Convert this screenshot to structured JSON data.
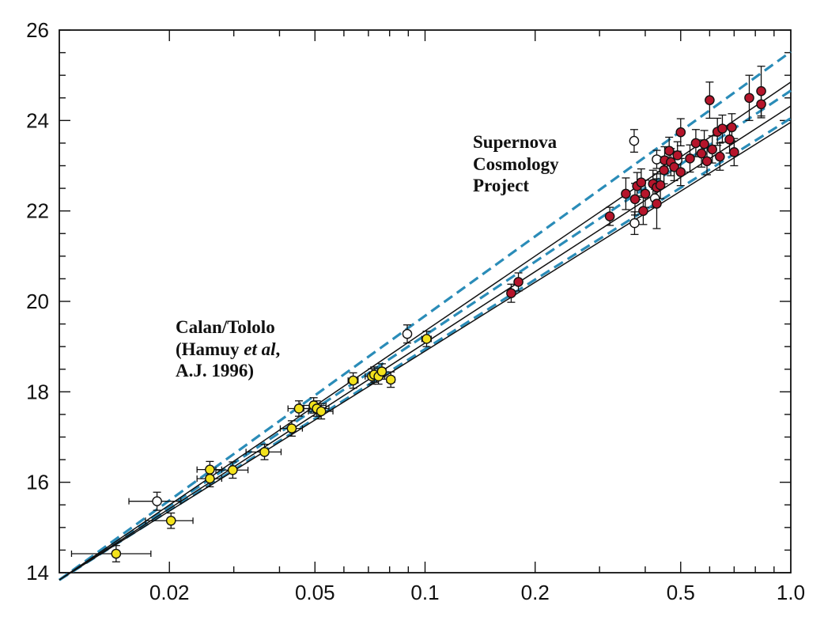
{
  "chart_data": {
    "type": "scatter",
    "title": "",
    "xlabel": "",
    "ylabel": "",
    "xscale": "log",
    "xlim": [
      0.01,
      1.0
    ],
    "ylim": [
      14,
      26
    ],
    "x_tick_labels": [
      "0.02",
      "0.05",
      "0.1",
      "0.2",
      "0.5",
      "1.0"
    ],
    "y_tick_labels": [
      "14",
      "16",
      "18",
      "20",
      "22",
      "24",
      "26"
    ],
    "annotations": {
      "supernova": [
        "Supernova",
        "Cosmology",
        "Project"
      ],
      "calan": {
        "line1": "Calan/Tololo",
        "line2_prefix": "(Hamuy ",
        "line2_italic": "et al",
        "line2_suffix": ",",
        "line3": "A.J. 1996)"
      }
    },
    "colors": {
      "calan_tololo": "#f3e21c",
      "supernova": "#b5152b",
      "open": "#ffffff",
      "dashed_models": "#2a8cb8",
      "solid_models": "#111111"
    },
    "series": [
      {
        "group": "calan_tololo",
        "points": [
          {
            "x": 0.0143,
            "y": 14.42,
            "xerr": 0.0035,
            "yerr": 0.18
          },
          {
            "x": 0.0202,
            "y": 15.15,
            "xerr": 0.003,
            "yerr": 0.17
          },
          {
            "x": 0.0258,
            "y": 16.28,
            "xerr": 0.002,
            "yerr": 0.18
          },
          {
            "x": 0.0258,
            "y": 16.08,
            "xerr": 0.002,
            "yerr": 0.18
          },
          {
            "x": 0.0298,
            "y": 16.27,
            "xerr": 0.003,
            "yerr": 0.18
          },
          {
            "x": 0.0364,
            "y": 16.67,
            "xerr": 0.004,
            "yerr": 0.17
          },
          {
            "x": 0.0432,
            "y": 17.19,
            "xerr": 0.003,
            "yerr": 0.17
          },
          {
            "x": 0.0452,
            "y": 17.63,
            "xerr": 0.003,
            "yerr": 0.17
          },
          {
            "x": 0.0496,
            "y": 17.7,
            "xerr": 0.004,
            "yerr": 0.17
          },
          {
            "x": 0.0506,
            "y": 17.63,
            "xerr": 0.004,
            "yerr": 0.17
          },
          {
            "x": 0.052,
            "y": 17.57,
            "xerr": 0.004,
            "yerr": 0.17
          },
          {
            "x": 0.0636,
            "y": 18.25,
            "xerr": 0.002,
            "yerr": 0.17
          },
          {
            "x": 0.0716,
            "y": 18.34,
            "xerr": 0.003,
            "yerr": 0.17
          },
          {
            "x": 0.0726,
            "y": 18.38,
            "xerr": 0.002,
            "yerr": 0.17
          },
          {
            "x": 0.0746,
            "y": 18.34,
            "xerr": 0.003,
            "yerr": 0.17
          },
          {
            "x": 0.0762,
            "y": 18.45,
            "xerr": 0.002,
            "yerr": 0.17
          },
          {
            "x": 0.0806,
            "y": 18.27,
            "xerr": 0.002,
            "yerr": 0.17
          },
          {
            "x": 0.101,
            "y": 19.17,
            "xerr": 0.003,
            "yerr": 0.17
          }
        ]
      },
      {
        "group": "open",
        "points": [
          {
            "x": 0.0185,
            "y": 15.58,
            "xerr": 0.003,
            "yerr": 0.2
          },
          {
            "x": 0.0894,
            "y": 19.28,
            "xerr": 0.002,
            "yerr": 0.2
          },
          {
            "x": 0.373,
            "y": 23.55,
            "xerr": 0.006,
            "yerr": 0.25
          },
          {
            "x": 0.374,
            "y": 21.73,
            "xerr": 0.006,
            "yerr": 0.25
          },
          {
            "x": 0.43,
            "y": 23.14,
            "xerr": 0.006,
            "yerr": 0.2
          },
          {
            "x": 0.49,
            "y": 23.12,
            "xerr": 0.006,
            "yerr": 0.2
          },
          {
            "x": 0.425,
            "y": 22.28,
            "xerr": 0.006,
            "yerr": 0.2
          }
        ]
      },
      {
        "group": "supernova",
        "points": [
          {
            "x": 0.172,
            "y": 20.18,
            "yerr": 0.2
          },
          {
            "x": 0.18,
            "y": 20.43,
            "yerr": 0.2
          },
          {
            "x": 0.32,
            "y": 21.88,
            "yerr": 0.2
          },
          {
            "x": 0.354,
            "y": 22.38,
            "yerr": 0.35
          },
          {
            "x": 0.375,
            "y": 22.26,
            "yerr": 0.35
          },
          {
            "x": 0.38,
            "y": 22.55,
            "yerr": 0.3
          },
          {
            "x": 0.39,
            "y": 22.63,
            "yerr": 0.3
          },
          {
            "x": 0.395,
            "y": 22.0,
            "yerr": 0.3
          },
          {
            "x": 0.4,
            "y": 22.38,
            "yerr": 0.3
          },
          {
            "x": 0.42,
            "y": 22.6,
            "yerr": 0.3
          },
          {
            "x": 0.43,
            "y": 22.16,
            "yerr": 0.55
          },
          {
            "x": 0.43,
            "y": 22.52,
            "yerr": 0.3
          },
          {
            "x": 0.44,
            "y": 22.57,
            "yerr": 0.3
          },
          {
            "x": 0.45,
            "y": 22.9,
            "yerr": 0.3
          },
          {
            "x": 0.452,
            "y": 23.12,
            "yerr": 0.3
          },
          {
            "x": 0.465,
            "y": 23.33,
            "yerr": 0.3
          },
          {
            "x": 0.47,
            "y": 23.08,
            "yerr": 0.3
          },
          {
            "x": 0.48,
            "y": 22.97,
            "yerr": 0.3
          },
          {
            "x": 0.49,
            "y": 23.23,
            "yerr": 0.3
          },
          {
            "x": 0.5,
            "y": 22.86,
            "yerr": 0.3
          },
          {
            "x": 0.5,
            "y": 23.74,
            "yerr": 0.3
          },
          {
            "x": 0.53,
            "y": 23.16,
            "yerr": 0.3
          },
          {
            "x": 0.55,
            "y": 23.5,
            "yerr": 0.3
          },
          {
            "x": 0.57,
            "y": 23.27,
            "yerr": 0.3
          },
          {
            "x": 0.58,
            "y": 23.48,
            "yerr": 0.3
          },
          {
            "x": 0.59,
            "y": 23.1,
            "yerr": 0.3
          },
          {
            "x": 0.6,
            "y": 24.45,
            "yerr": 0.4
          },
          {
            "x": 0.61,
            "y": 23.36,
            "yerr": 0.3
          },
          {
            "x": 0.63,
            "y": 23.75,
            "yerr": 0.3
          },
          {
            "x": 0.64,
            "y": 23.2,
            "yerr": 0.3
          },
          {
            "x": 0.65,
            "y": 23.82,
            "yerr": 0.3
          },
          {
            "x": 0.68,
            "y": 23.58,
            "yerr": 0.3
          },
          {
            "x": 0.69,
            "y": 23.85,
            "yerr": 0.3
          },
          {
            "x": 0.7,
            "y": 23.3,
            "yerr": 0.3
          },
          {
            "x": 0.77,
            "y": 24.5,
            "yerr": 0.5
          },
          {
            "x": 0.83,
            "y": 24.65,
            "yerr": 0.55
          },
          {
            "x": 0.83,
            "y": 24.36,
            "yerr": 0.3
          }
        ]
      }
    ],
    "model_lines": [
      {
        "style": "dashed",
        "points": [
          [
            0.01,
            13.84
          ],
          [
            1.0,
            25.52
          ]
        ]
      },
      {
        "style": "dashed",
        "points": [
          [
            0.01,
            13.84
          ],
          [
            1.0,
            24.66
          ]
        ]
      },
      {
        "style": "dashed",
        "points": [
          [
            0.01,
            13.84
          ],
          [
            1.0,
            24.05
          ]
        ]
      },
      {
        "style": "solid",
        "points": [
          [
            0.01,
            13.84
          ],
          [
            1.0,
            24.85
          ]
        ]
      },
      {
        "style": "solid",
        "points": [
          [
            0.01,
            13.84
          ],
          [
            1.0,
            24.32
          ]
        ]
      },
      {
        "style": "solid",
        "points": [
          [
            0.01,
            13.84
          ],
          [
            1.0,
            23.96
          ]
        ]
      }
    ]
  }
}
